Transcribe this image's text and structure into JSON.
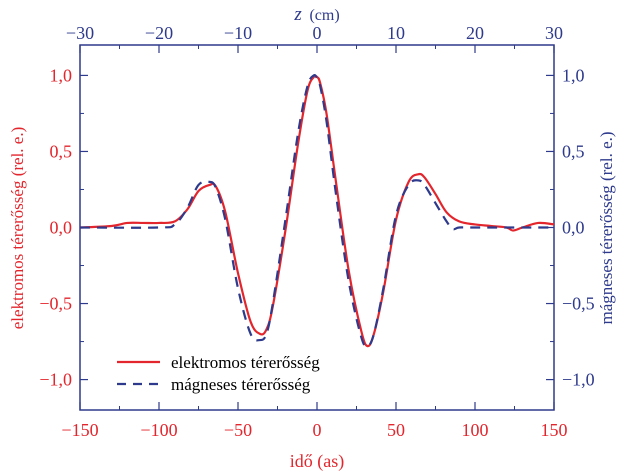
{
  "colors": {
    "electric": "#e3262d",
    "magnetic": "#2e3a8c",
    "frame": "#2e3a8c"
  },
  "chart_data": {
    "type": "line",
    "xlabel_bottom": "idő (as)",
    "xlabel_top": "z (cm)",
    "xlabel_top_var": "z",
    "xlabel_top_unit": "(cm)",
    "ylabel_left": "elektromos térerősség (rel. e.)",
    "ylabel_right": "mágneses térerősség (rel. e.)",
    "xlim": [
      -150,
      150
    ],
    "ylim": [
      -1.2,
      1.2
    ],
    "xlim_top": [
      -30,
      30
    ],
    "x_ticks": [
      "−150",
      "−100",
      "−50",
      "0",
      "50",
      "100",
      "150"
    ],
    "x_tick_values": [
      -150,
      -100,
      -50,
      0,
      50,
      100,
      150
    ],
    "x_top_ticks": [
      "−30",
      "−20",
      "−10",
      "0",
      "10",
      "20",
      "30"
    ],
    "x_top_tick_values": [
      -30,
      -20,
      -10,
      0,
      10,
      20,
      30
    ],
    "y_left_ticks": [
      "1,0",
      "0,5",
      "0,0",
      "−0,5",
      "−1,0"
    ],
    "y_right_ticks": [
      "1,0",
      "0,5",
      "0,0",
      "−0,5",
      "−1,0"
    ],
    "y_tick_values": [
      1.0,
      0.5,
      0.0,
      -0.5,
      -1.0
    ],
    "legend_position": "bottom-left",
    "grid": false,
    "series": [
      {
        "name": "elektromos térerősség",
        "style": "solid",
        "x": [
          -150,
          -130,
          -120,
          -110,
          -100,
          -90,
          -82,
          -75,
          -68,
          -64,
          -58,
          -50,
          -42,
          -36,
          -32,
          -28,
          -20,
          -12,
          -6,
          -2,
          0,
          2,
          6,
          12,
          20,
          28,
          32,
          36,
          42,
          50,
          58,
          64,
          68,
          75,
          82,
          90,
          100,
          110,
          120,
          124,
          130,
          140,
          150
        ],
        "y": [
          0.0,
          0.01,
          0.03,
          0.03,
          0.03,
          0.04,
          0.12,
          0.24,
          0.28,
          0.27,
          0.1,
          -0.3,
          -0.62,
          -0.7,
          -0.67,
          -0.52,
          -0.02,
          0.55,
          0.9,
          0.99,
          0.99,
          0.95,
          0.75,
          0.3,
          -0.28,
          -0.68,
          -0.78,
          -0.7,
          -0.42,
          0.05,
          0.3,
          0.35,
          0.33,
          0.22,
          0.1,
          0.04,
          0.02,
          0.01,
          0.0,
          -0.02,
          0.0,
          0.03,
          0.02
        ]
      },
      {
        "name": "mágneses térerősség",
        "style": "dashed",
        "x": [
          -150,
          -100,
          -90,
          -82,
          -75,
          -68,
          -64,
          -58,
          -50,
          -42,
          -36,
          -32,
          -28,
          -20,
          -12,
          -6,
          -2,
          0,
          2,
          6,
          12,
          20,
          28,
          32,
          36,
          42,
          50,
          58,
          64,
          68,
          75,
          82,
          86,
          90,
          100,
          150
        ],
        "y": [
          0.0,
          0.0,
          0.02,
          0.13,
          0.28,
          0.3,
          0.26,
          0.05,
          -0.4,
          -0.7,
          -0.74,
          -0.7,
          -0.5,
          0.05,
          0.62,
          0.93,
          1.0,
          0.98,
          0.93,
          0.7,
          0.22,
          -0.35,
          -0.72,
          -0.78,
          -0.7,
          -0.4,
          0.08,
          0.28,
          0.31,
          0.28,
          0.16,
          0.04,
          -0.01,
          0.0,
          0.0,
          0.0
        ]
      }
    ]
  }
}
